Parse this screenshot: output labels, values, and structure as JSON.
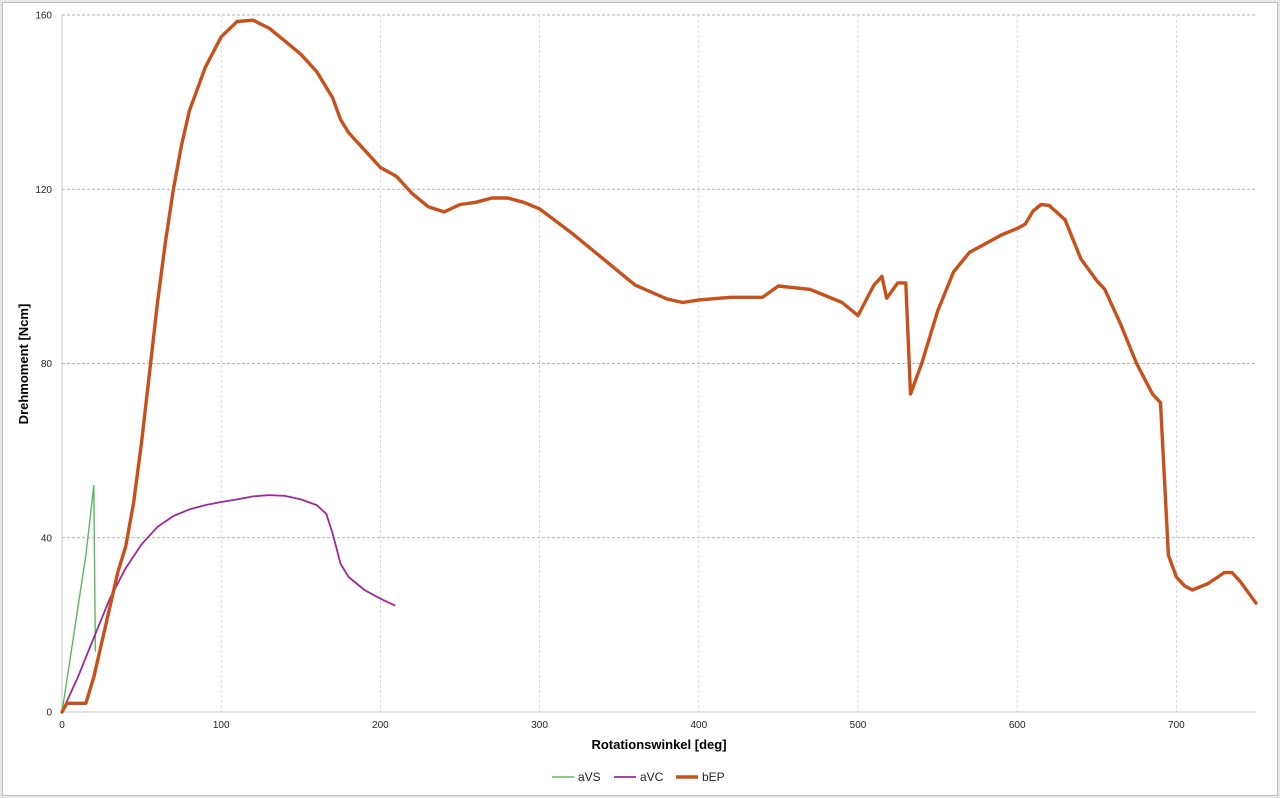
{
  "chart_data": {
    "type": "line",
    "xlabel": "Rotationswinkel  [deg]",
    "ylabel": "Drehmoment  [Ncm]",
    "xlim": [
      0,
      750
    ],
    "ylim": [
      0,
      160
    ],
    "xticks": [
      0,
      100,
      200,
      300,
      400,
      500,
      600,
      700
    ],
    "yticks": [
      0,
      40,
      80,
      120,
      160
    ],
    "grid": true,
    "legend_position": "bottom",
    "series": [
      {
        "name": "aVS",
        "color": "#5cb85c",
        "points": [
          [
            0,
            0
          ],
          [
            5,
            12
          ],
          [
            10,
            24
          ],
          [
            15,
            36
          ],
          [
            20,
            52
          ],
          [
            21,
            14
          ]
        ]
      },
      {
        "name": "aVC",
        "color": "#9b2a9b",
        "points": [
          [
            0,
            0
          ],
          [
            10,
            8
          ],
          [
            20,
            17
          ],
          [
            30,
            26
          ],
          [
            40,
            33
          ],
          [
            50,
            38.5
          ],
          [
            60,
            42.5
          ],
          [
            70,
            45
          ],
          [
            80,
            46.5
          ],
          [
            90,
            47.5
          ],
          [
            100,
            48.2
          ],
          [
            110,
            48.8
          ],
          [
            120,
            49.5
          ],
          [
            130,
            49.8
          ],
          [
            140,
            49.6
          ],
          [
            150,
            48.8
          ],
          [
            160,
            47.5
          ],
          [
            166,
            45.5
          ],
          [
            170,
            41
          ],
          [
            175,
            34
          ],
          [
            180,
            31
          ],
          [
            190,
            28
          ],
          [
            200,
            26
          ],
          [
            209,
            24.5
          ]
        ]
      },
      {
        "name": "bEP",
        "color": "#c8511b",
        "points": [
          [
            0,
            0
          ],
          [
            3,
            2
          ],
          [
            10,
            2
          ],
          [
            15,
            2
          ],
          [
            20,
            8
          ],
          [
            25,
            16
          ],
          [
            30,
            24
          ],
          [
            35,
            32
          ],
          [
            40,
            38
          ],
          [
            45,
            48
          ],
          [
            50,
            62
          ],
          [
            55,
            78
          ],
          [
            60,
            94
          ],
          [
            65,
            108
          ],
          [
            70,
            120
          ],
          [
            75,
            130
          ],
          [
            80,
            138
          ],
          [
            90,
            148
          ],
          [
            100,
            155
          ],
          [
            110,
            158.5
          ],
          [
            120,
            158.8
          ],
          [
            130,
            157
          ],
          [
            140,
            154
          ],
          [
            150,
            151
          ],
          [
            160,
            147
          ],
          [
            170,
            141
          ],
          [
            175,
            136
          ],
          [
            180,
            133
          ],
          [
            190,
            129
          ],
          [
            200,
            125
          ],
          [
            210,
            123
          ],
          [
            220,
            119
          ],
          [
            230,
            116
          ],
          [
            240,
            114.8
          ],
          [
            250,
            116.5
          ],
          [
            260,
            117
          ],
          [
            270,
            118
          ],
          [
            280,
            118
          ],
          [
            290,
            117
          ],
          [
            300,
            115.5
          ],
          [
            320,
            110
          ],
          [
            340,
            104
          ],
          [
            360,
            98
          ],
          [
            380,
            94.8
          ],
          [
            390,
            94
          ],
          [
            400,
            94.6
          ],
          [
            420,
            95.2
          ],
          [
            440,
            95.2
          ],
          [
            450,
            97.8
          ],
          [
            470,
            97
          ],
          [
            490,
            94
          ],
          [
            500,
            91
          ],
          [
            510,
            98
          ],
          [
            515,
            100
          ],
          [
            518,
            95
          ],
          [
            525,
            98.5
          ],
          [
            530,
            98.5
          ],
          [
            533,
            73
          ],
          [
            540,
            80
          ],
          [
            550,
            92
          ],
          [
            560,
            101
          ],
          [
            570,
            105.5
          ],
          [
            580,
            107.5
          ],
          [
            590,
            109.5
          ],
          [
            600,
            111
          ],
          [
            605,
            112
          ],
          [
            610,
            115
          ],
          [
            615,
            116.5
          ],
          [
            620,
            116.3
          ],
          [
            630,
            113
          ],
          [
            640,
            104
          ],
          [
            650,
            99
          ],
          [
            655,
            97
          ],
          [
            665,
            89
          ],
          [
            675,
            80
          ],
          [
            685,
            73
          ],
          [
            690,
            71
          ],
          [
            695,
            36
          ],
          [
            700,
            31
          ],
          [
            705,
            29
          ],
          [
            710,
            28
          ],
          [
            720,
            29.5
          ],
          [
            730,
            32
          ],
          [
            735,
            32
          ],
          [
            740,
            30
          ],
          [
            750,
            25
          ]
        ]
      }
    ]
  }
}
